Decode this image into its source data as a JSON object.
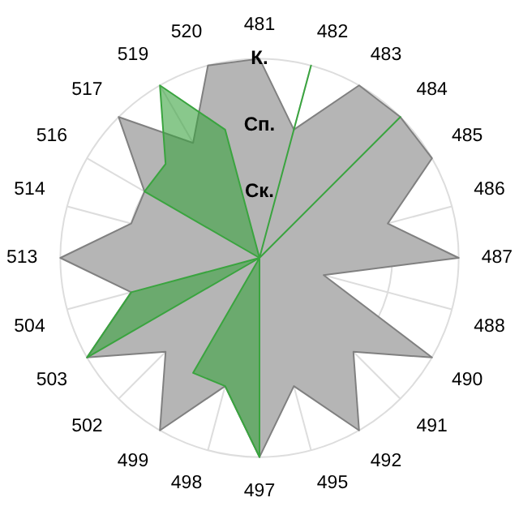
{
  "chart_data": {
    "type": "radar",
    "categories": [
      "481",
      "482",
      "483",
      "484",
      "485",
      "486",
      "487",
      "488",
      "490",
      "491",
      "492",
      "495",
      "497",
      "498",
      "499",
      "502",
      "503",
      "504",
      "513",
      "514",
      "516",
      "517",
      "519",
      "520"
    ],
    "series": [
      {
        "color": "#b5b5b5",
        "values": [
          3,
          2,
          3,
          3,
          3,
          2,
          3,
          1,
          3,
          2,
          3,
          2,
          3,
          2,
          3,
          2,
          3,
          2,
          3,
          2,
          2,
          3,
          2,
          3
        ]
      },
      {
        "color": "#3aa43f",
        "values": [
          0,
          3,
          0,
          3,
          0,
          0,
          0,
          0,
          0,
          0,
          0,
          0,
          3,
          2,
          2,
          0,
          3,
          2,
          0,
          0,
          2,
          2,
          3,
          2
        ]
      }
    ],
    "ylim": [
      0,
      3
    ],
    "yticks": [
      {
        "value": 1,
        "label": "Ск."
      },
      {
        "value": 2,
        "label": "Сп."
      },
      {
        "value": 3,
        "label": "К."
      }
    ],
    "grid": true,
    "marker": "none",
    "legend": false
  }
}
